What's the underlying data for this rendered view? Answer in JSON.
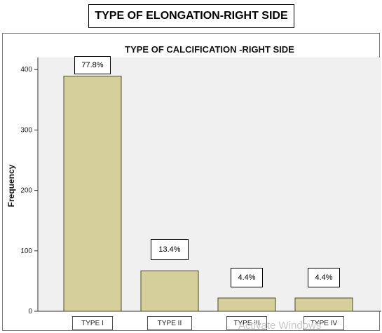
{
  "header": {
    "title": "TYPE OF ELONGATION-RIGHT SIDE"
  },
  "chart_data": {
    "type": "bar",
    "title": "TYPE OF CALCIFICATION -RIGHT SIDE",
    "xlabel": "",
    "ylabel": "Frequency",
    "categories": [
      "TYPE I",
      "TYPE II",
      "TYPE III",
      "TYPE IV"
    ],
    "values": [
      389,
      67,
      22,
      22
    ],
    "percent_labels": [
      "77.8%",
      "13.4%",
      "4.4%",
      "4.4%"
    ],
    "ylim": [
      0,
      420
    ],
    "yticks": [
      0,
      100,
      200,
      300,
      400
    ],
    "grid": false,
    "legend": "none",
    "colors": {
      "bar_fill": "#d4cf9b",
      "bar_stroke": "#4a4a2a",
      "plot_bg": "#f0f0f0"
    }
  },
  "watermark": {
    "text": "Activate Windows"
  }
}
